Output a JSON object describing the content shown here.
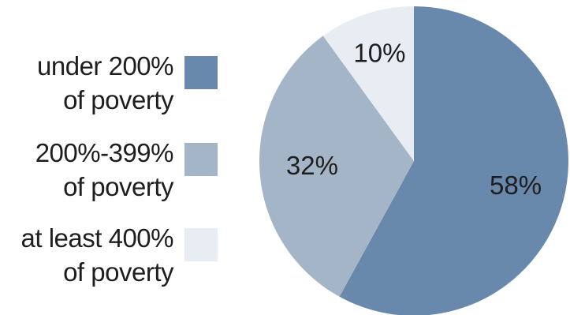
{
  "chart_data": {
    "type": "pie",
    "categories": [
      "under 200% of poverty",
      "200%-399% of poverty",
      "at least 400% of poverty"
    ],
    "values": [
      58,
      32,
      10
    ],
    "data_labels": [
      "58%",
      "32%",
      "10%"
    ],
    "colors": [
      "#6889ab",
      "#a4b5c8",
      "#e8edf3"
    ],
    "legend": {
      "placement": "left",
      "items": [
        {
          "line1": "under 200%",
          "line2": "of poverty",
          "color": "#6889ab"
        },
        {
          "line1": "200%-399%",
          "line2": "of poverty",
          "color": "#a4b5c8"
        },
        {
          "line1": "at least 400%",
          "line2": "of poverty",
          "color": "#e8edf3"
        }
      ]
    },
    "title": "",
    "xlabel": "",
    "ylabel": ""
  }
}
